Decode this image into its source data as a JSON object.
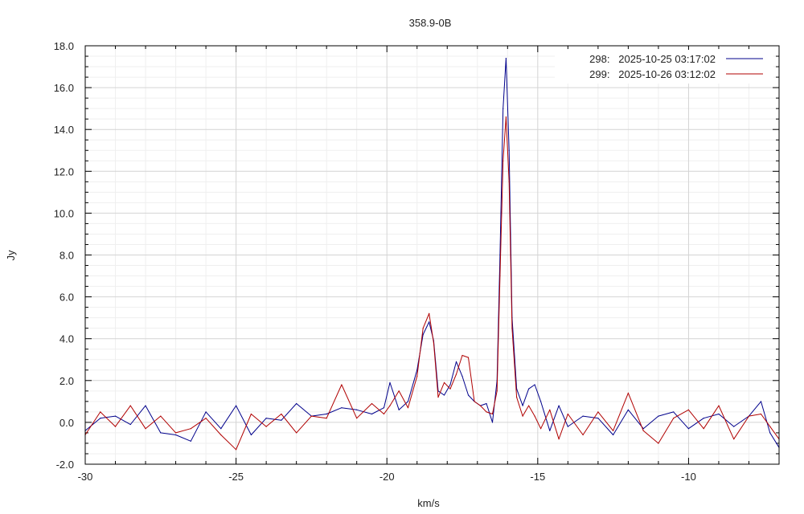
{
  "chart_data": {
    "type": "line",
    "title": "358.9-0B",
    "xlabel": "km/s",
    "ylabel": "Jy",
    "xlim": [
      -30.0,
      -7.0
    ],
    "ylim": [
      -2.0,
      18.0
    ],
    "x_major_ticks": [
      -30,
      -25,
      -20,
      -15,
      -10
    ],
    "x_tick_labels": [
      "-30",
      "-25",
      "-20",
      "-15",
      "-10"
    ],
    "y_major_ticks": [
      -2,
      0,
      2,
      4,
      6,
      8,
      10,
      12,
      14,
      16,
      18
    ],
    "y_tick_labels": [
      "-2.0",
      "0.0",
      "2.0",
      "4.0",
      "6.0",
      "8.0",
      "10.0",
      "12.0",
      "14.0",
      "16.0",
      "18.0"
    ],
    "grid": true,
    "legend_position": "top-right",
    "series": [
      {
        "name": "298:   2025-10-25 03:17:02",
        "color": "#00008b",
        "x": [
          -30.0,
          -29.5,
          -29.0,
          -28.5,
          -28.0,
          -27.5,
          -27.0,
          -26.5,
          -26.0,
          -25.5,
          -25.0,
          -24.5,
          -24.0,
          -23.5,
          -23.0,
          -22.5,
          -22.0,
          -21.5,
          -21.0,
          -20.5,
          -20.1,
          -19.9,
          -19.6,
          -19.3,
          -19.0,
          -18.8,
          -18.6,
          -18.45,
          -18.3,
          -18.1,
          -17.9,
          -17.7,
          -17.5,
          -17.3,
          -17.1,
          -16.9,
          -16.7,
          -16.5,
          -16.35,
          -16.25,
          -16.15,
          -16.05,
          -15.95,
          -15.85,
          -15.7,
          -15.5,
          -15.3,
          -15.1,
          -14.9,
          -14.6,
          -14.3,
          -14.0,
          -13.5,
          -13.0,
          -12.5,
          -12.0,
          -11.5,
          -11.0,
          -10.5,
          -10.0,
          -9.5,
          -9.0,
          -8.5,
          -8.0,
          -7.6,
          -7.3,
          -7.0
        ],
        "y": [
          -0.4,
          0.2,
          0.3,
          -0.1,
          0.8,
          -0.5,
          -0.6,
          -0.9,
          0.5,
          -0.3,
          0.8,
          -0.6,
          0.2,
          0.1,
          0.9,
          0.3,
          0.4,
          0.7,
          0.6,
          0.4,
          0.7,
          1.9,
          0.6,
          1.0,
          2.5,
          4.2,
          4.8,
          3.9,
          1.5,
          1.3,
          1.8,
          2.9,
          2.2,
          1.3,
          1.0,
          0.8,
          0.9,
          0.0,
          2.0,
          8.0,
          15.0,
          17.4,
          13.0,
          5.0,
          1.6,
          0.8,
          1.6,
          1.8,
          1.0,
          -0.4,
          0.8,
          -0.2,
          0.3,
          0.2,
          -0.6,
          0.6,
          -0.3,
          0.3,
          0.5,
          -0.3,
          0.2,
          0.4,
          -0.2,
          0.3,
          1.0,
          -0.5,
          -1.2
        ]
      },
      {
        "name": "299:   2025-10-26 03:12:02",
        "color": "#b00000",
        "x": [
          -30.0,
          -29.5,
          -29.0,
          -28.5,
          -28.0,
          -27.5,
          -27.0,
          -26.5,
          -26.0,
          -25.5,
          -25.0,
          -24.5,
          -24.0,
          -23.5,
          -23.0,
          -22.5,
          -22.0,
          -21.5,
          -21.0,
          -20.5,
          -20.1,
          -19.9,
          -19.6,
          -19.3,
          -19.0,
          -18.8,
          -18.6,
          -18.45,
          -18.3,
          -18.1,
          -17.9,
          -17.7,
          -17.5,
          -17.3,
          -17.1,
          -16.9,
          -16.7,
          -16.5,
          -16.35,
          -16.25,
          -16.15,
          -16.05,
          -15.95,
          -15.85,
          -15.7,
          -15.5,
          -15.3,
          -15.1,
          -14.9,
          -14.6,
          -14.3,
          -14.0,
          -13.5,
          -13.0,
          -12.5,
          -12.0,
          -11.5,
          -11.0,
          -10.5,
          -10.0,
          -9.5,
          -9.0,
          -8.5,
          -8.0,
          -7.6,
          -7.3,
          -7.0
        ],
        "y": [
          -0.6,
          0.5,
          -0.2,
          0.8,
          -0.3,
          0.3,
          -0.5,
          -0.3,
          0.2,
          -0.6,
          -1.3,
          0.4,
          -0.2,
          0.4,
          -0.5,
          0.3,
          0.2,
          1.8,
          0.2,
          0.9,
          0.4,
          0.8,
          1.5,
          0.7,
          2.2,
          4.5,
          5.2,
          3.8,
          1.2,
          1.9,
          1.6,
          2.3,
          3.2,
          3.1,
          1.0,
          0.8,
          0.5,
          0.4,
          1.5,
          7.0,
          12.5,
          14.6,
          11.5,
          4.5,
          1.2,
          0.3,
          0.8,
          0.3,
          -0.3,
          0.6,
          -0.8,
          0.4,
          -0.6,
          0.5,
          -0.4,
          1.4,
          -0.4,
          -1.0,
          0.2,
          0.6,
          -0.3,
          0.8,
          -0.8,
          0.3,
          0.4,
          -0.2,
          -0.8
        ]
      }
    ]
  }
}
